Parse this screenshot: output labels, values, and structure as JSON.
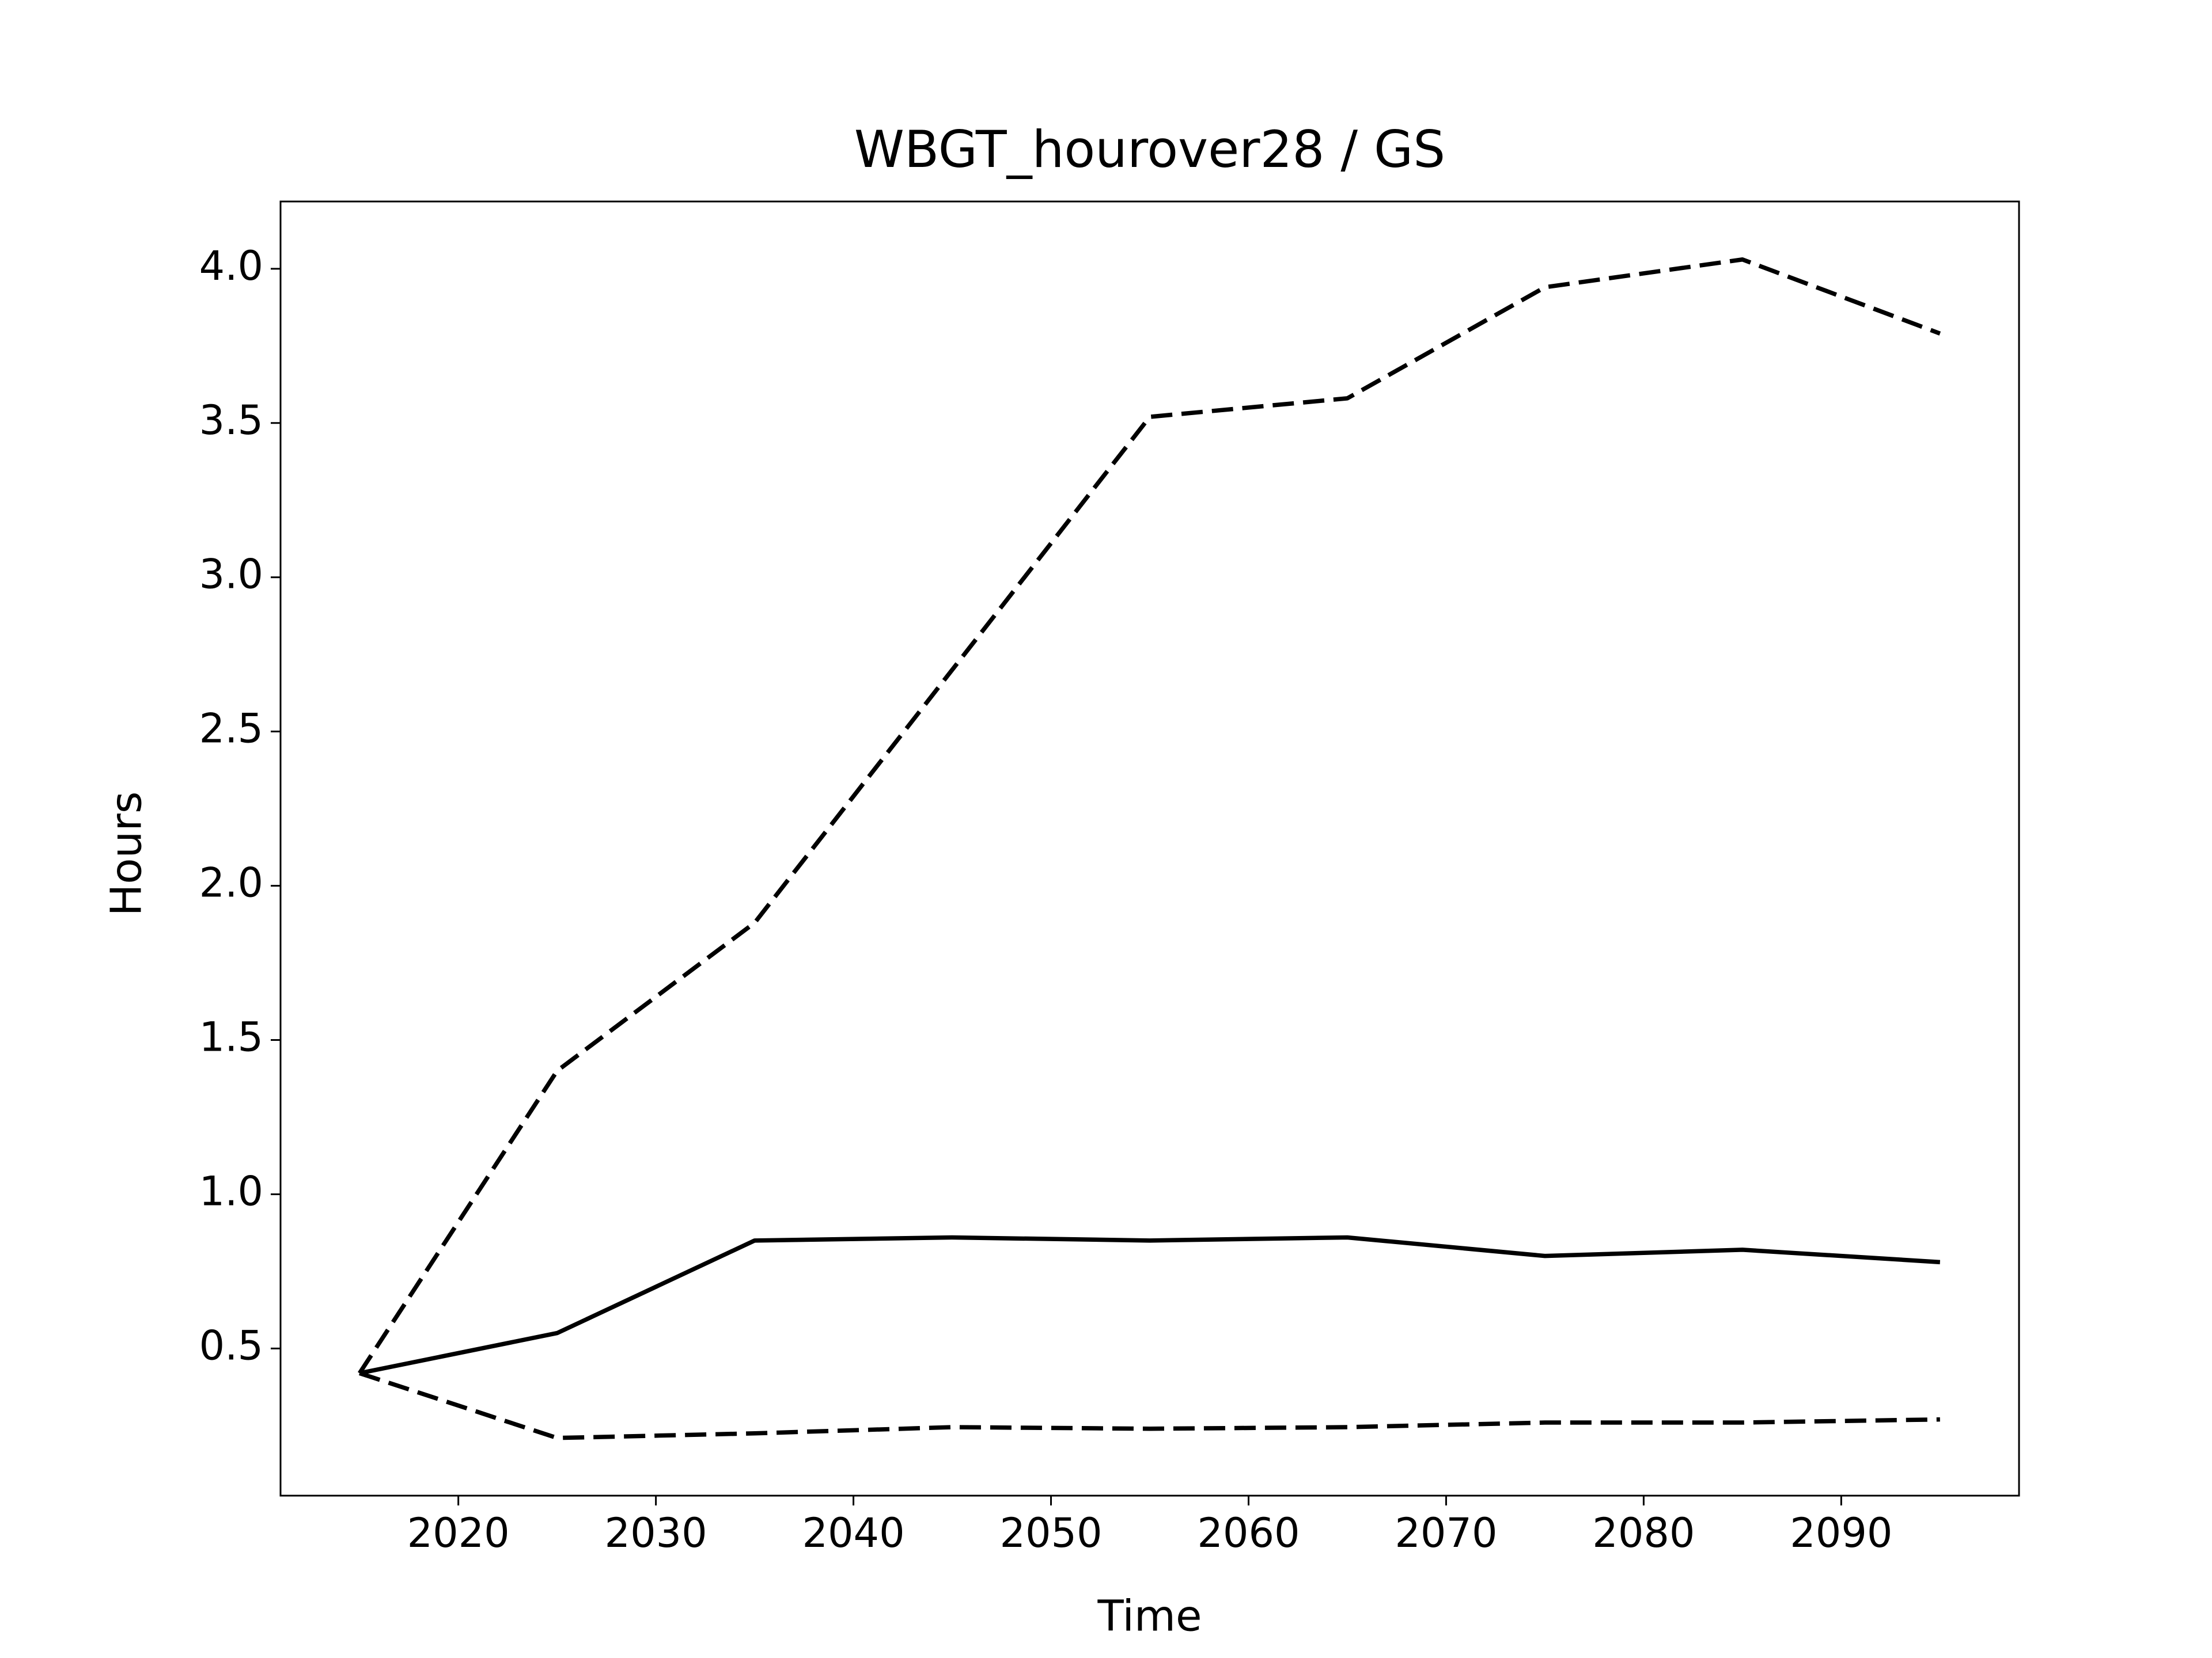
{
  "chart_data": {
    "type": "line",
    "title": "WBGT_hourover28 / GS",
    "x_label": "Time",
    "y_label": "Hours",
    "x": [
      2015,
      2025,
      2035,
      2045,
      2055,
      2065,
      2075,
      2085,
      2095
    ],
    "series": [
      {
        "color": "#000000",
        "linestyle": "dashed",
        "values": [
          0.42,
          1.4,
          1.88,
          2.7,
          3.52,
          3.58,
          3.94,
          4.03,
          3.79
        ]
      },
      {
        "color": "#000000",
        "linestyle": "solid",
        "values": [
          0.42,
          0.55,
          0.85,
          0.86,
          0.85,
          0.86,
          0.8,
          0.82,
          0.78
        ]
      },
      {
        "color": "#000000",
        "linestyle": "dashed",
        "values": [
          0.42,
          0.21,
          0.225,
          0.245,
          0.24,
          0.245,
          0.26,
          0.26,
          0.27
        ]
      }
    ],
    "xlim": [
      2011,
      2099
    ],
    "ylim": [
      0.023,
      4.218
    ],
    "xticks": [
      2020,
      2030,
      2040,
      2050,
      2060,
      2070,
      2080,
      2090
    ],
    "yticks": [
      0.5,
      {
        "value": 1,
        "label": "1.0"
      },
      1.5,
      {
        "value": 2,
        "label": "2.0"
      },
      2.5,
      {
        "value": 3,
        "label": "3.0"
      },
      3.5,
      {
        "value": 4,
        "label": "4.0"
      }
    ],
    "grid": false
  }
}
